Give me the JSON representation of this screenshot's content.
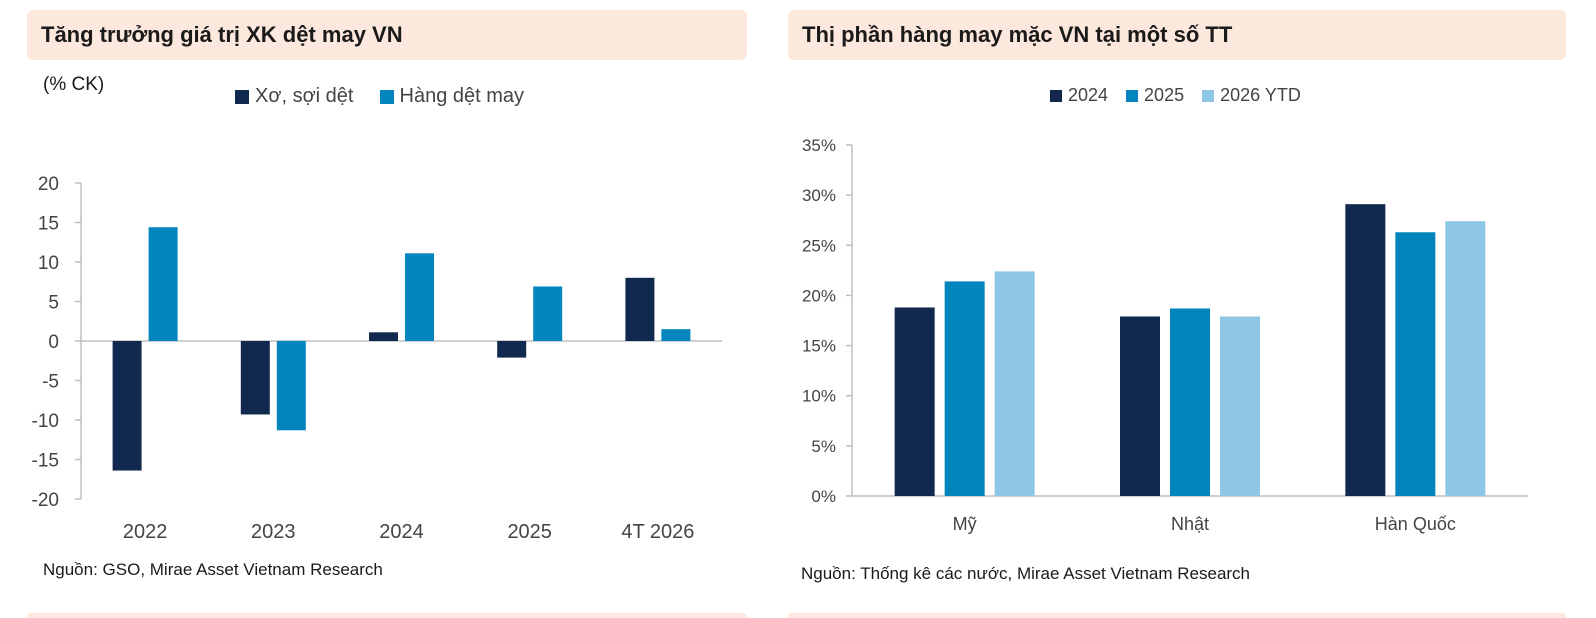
{
  "left_panel": {
    "title": "Tăng trưởng giá trị XK dệt may VN",
    "unit": "(% CK)",
    "source": "Nguồn: GSO, Mirae Asset Vietnam Research"
  },
  "right_panel": {
    "title": "Thị phần hàng may mặc VN tại một số TT",
    "source": "Nguồn: Thống kê các nước, Mirae Asset Vietnam Research"
  },
  "chart_data": [
    {
      "type": "bar",
      "title": "Tăng trưởng giá trị XK dệt may VN",
      "ylabel": "(% CK)",
      "categories": [
        "2022",
        "2023",
        "2024",
        "2025",
        "4T 2026"
      ],
      "series": [
        {
          "name": "Xơ, sợi dệt",
          "color": "#12294f",
          "values": [
            -16.4,
            -9.3,
            1.1,
            -2.1,
            8.0
          ]
        },
        {
          "name": "Hàng dệt may",
          "color": "#0285bd",
          "values": [
            14.4,
            -11.3,
            11.1,
            6.9,
            1.5
          ]
        }
      ],
      "yticks": [
        "20",
        "15",
        "10",
        "5",
        "0",
        "-5",
        "-10",
        "-15",
        "-20"
      ],
      "ylim": [
        -20,
        20
      ],
      "legend": "top",
      "grid": false
    },
    {
      "type": "bar",
      "title": "Thị phần hàng may mặc VN tại một số TT",
      "categories": [
        "Mỹ",
        "Nhật",
        "Hàn Quốc"
      ],
      "series": [
        {
          "name": "2024",
          "color": "#12294f",
          "values": [
            18.8,
            17.9,
            29.1
          ]
        },
        {
          "name": "2025",
          "color": "#0285bd",
          "values": [
            21.4,
            18.7,
            26.3
          ]
        },
        {
          "name": "2026 YTD",
          "color": "#8ec7e6",
          "values": [
            22.4,
            17.9,
            27.4
          ]
        }
      ],
      "yticks": [
        "35%",
        "30%",
        "25%",
        "20%",
        "15%",
        "10%",
        "5%",
        "0%"
      ],
      "ylim": [
        0,
        35
      ],
      "legend": "top",
      "grid": false
    }
  ]
}
